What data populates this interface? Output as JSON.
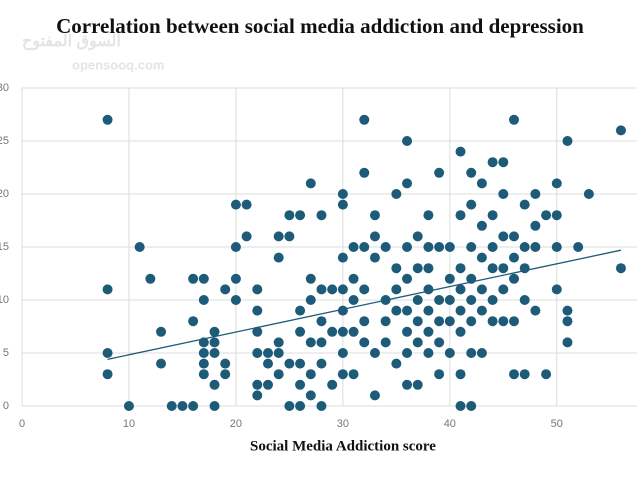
{
  "chart_data": {
    "type": "scatter",
    "title": "Correlation between social media addiction and depression",
    "xlabel": "Social Media Addiction score",
    "watermark_arabic": "السوق المفتوح",
    "watermark": "opensooq.com",
    "color": "#1d5b78",
    "xlim": [
      0,
      57.5
    ],
    "ylim": [
      0,
      30
    ],
    "xticks": [
      0,
      10,
      20,
      30,
      40,
      50
    ],
    "yticks": [
      0,
      5,
      10,
      15,
      20,
      25,
      30
    ],
    "grid": true,
    "x": [
      8,
      8,
      8,
      8,
      10,
      11,
      12,
      13,
      13,
      14,
      15,
      16,
      16,
      16,
      17,
      17,
      17,
      17,
      17,
      17,
      18,
      18,
      18,
      18,
      18,
      19,
      19,
      19,
      20,
      20,
      20,
      21,
      20,
      21,
      22,
      22,
      22,
      22,
      22,
      22,
      23,
      23,
      23,
      24,
      24,
      24,
      24,
      24,
      25,
      25,
      25,
      25,
      26,
      26,
      26,
      26,
      26,
      26,
      27,
      27,
      27,
      27,
      27,
      27,
      28,
      28,
      28,
      28,
      28,
      28,
      29,
      29,
      29,
      30,
      30,
      30,
      30,
      30,
      30,
      30,
      30,
      31,
      31,
      31,
      31,
      31,
      32,
      32,
      32,
      32,
      32,
      32,
      33,
      33,
      33,
      33,
      33,
      34,
      34,
      34,
      34,
      35,
      35,
      35,
      35,
      35,
      36,
      36,
      36,
      36,
      36,
      36,
      36,
      36,
      37,
      37,
      37,
      37,
      37,
      37,
      38,
      38,
      38,
      38,
      38,
      38,
      38,
      39,
      39,
      39,
      39,
      39,
      39,
      40,
      40,
      40,
      40,
      40,
      41,
      41,
      41,
      41,
      41,
      41,
      41,
      41,
      42,
      42,
      42,
      42,
      42,
      42,
      42,
      42,
      43,
      43,
      43,
      43,
      43,
      43,
      44,
      44,
      44,
      44,
      44,
      44,
      45,
      45,
      45,
      45,
      45,
      45,
      46,
      46,
      46,
      46,
      46,
      46,
      47,
      47,
      47,
      47,
      47,
      48,
      48,
      48,
      48,
      49,
      49,
      50,
      50,
      50,
      50,
      51,
      51,
      51,
      51,
      52,
      53,
      56,
      56
    ],
    "values": [
      27,
      11,
      5,
      3,
      0,
      15,
      12,
      7,
      4,
      0,
      0,
      0,
      8,
      12,
      12,
      10,
      6,
      5,
      4,
      3,
      7,
      6,
      5,
      0,
      2,
      4,
      3,
      11,
      12,
      10,
      19,
      19,
      15,
      16,
      11,
      9,
      7,
      5,
      2,
      1,
      5,
      4,
      2,
      14,
      16,
      5,
      6,
      3,
      18,
      16,
      4,
      0,
      18,
      9,
      7,
      4,
      2,
      0,
      21,
      12,
      10,
      6,
      3,
      1,
      11,
      8,
      6,
      4,
      0,
      18,
      7,
      11,
      2,
      20,
      19,
      14,
      11,
      9,
      7,
      5,
      3,
      15,
      12,
      10,
      7,
      3,
      27,
      22,
      15,
      11,
      8,
      6,
      18,
      16,
      14,
      1,
      5,
      15,
      10,
      8,
      6,
      20,
      13,
      11,
      9,
      4,
      25,
      21,
      15,
      12,
      9,
      7,
      5,
      2,
      16,
      13,
      10,
      8,
      6,
      2,
      18,
      15,
      13,
      11,
      9,
      7,
      5,
      22,
      15,
      10,
      8,
      6,
      3,
      15,
      12,
      10,
      8,
      5,
      24,
      18,
      13,
      11,
      9,
      7,
      3,
      0,
      22,
      19,
      15,
      12,
      10,
      8,
      5,
      0,
      21,
      17,
      14,
      11,
      9,
      5,
      23,
      18,
      15,
      13,
      10,
      8,
      23,
      20,
      16,
      13,
      11,
      8,
      27,
      16,
      14,
      12,
      8,
      3,
      19,
      15,
      13,
      10,
      3,
      20,
      17,
      15,
      9,
      3,
      18,
      21,
      18,
      15,
      11,
      25,
      9,
      8,
      6,
      15,
      20,
      26,
      13
    ],
    "trendline": {
      "color": "#1d5b78",
      "x": [
        8,
        56
      ],
      "y": [
        4.4,
        14.7
      ]
    }
  }
}
